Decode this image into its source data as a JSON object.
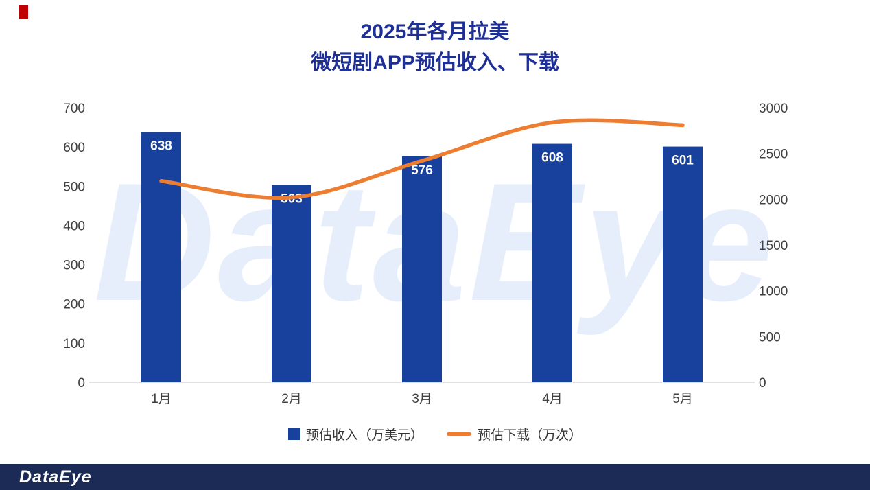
{
  "title": {
    "line1": "2025年各月拉美",
    "line2": "微短剧APP预估收入、下载"
  },
  "watermark": {
    "text": "DataEye"
  },
  "footer": {
    "logo": "DataEye"
  },
  "colors": {
    "title": "#1e2f96",
    "bar": "#17419c",
    "line": "#ed7d31",
    "axis_text": "#404040",
    "bar_label": "#ffffff",
    "watermark": "#e6eefb",
    "footer_bg": "#1c2b55",
    "accent_red": "#c00000",
    "baseline": "#d9d9d9"
  },
  "chart_data": {
    "type": "bar+line combo",
    "title": "2025年各月拉美 微短剧APP预估收入、下载",
    "categories": [
      "1月",
      "2月",
      "3月",
      "4月",
      "5月"
    ],
    "series": [
      {
        "name": "预估收入（万美元）",
        "type": "bar",
        "axis": "left",
        "color": "#17419c",
        "values": [
          638,
          503,
          576,
          608,
          601
        ]
      },
      {
        "name": "预估下载（万次）",
        "type": "line",
        "axis": "right",
        "color": "#ed7d31",
        "values": [
          2200,
          2020,
          2420,
          2840,
          2810
        ]
      }
    ],
    "left_axis": {
      "min": 0,
      "max": 700,
      "ticks": [
        0,
        100,
        200,
        300,
        400,
        500,
        600,
        700
      ]
    },
    "right_axis": {
      "min": 0,
      "max": 3000,
      "ticks": [
        0,
        500,
        1000,
        1500,
        2000,
        2500,
        3000
      ]
    },
    "grid": false,
    "legend_position": "bottom"
  }
}
